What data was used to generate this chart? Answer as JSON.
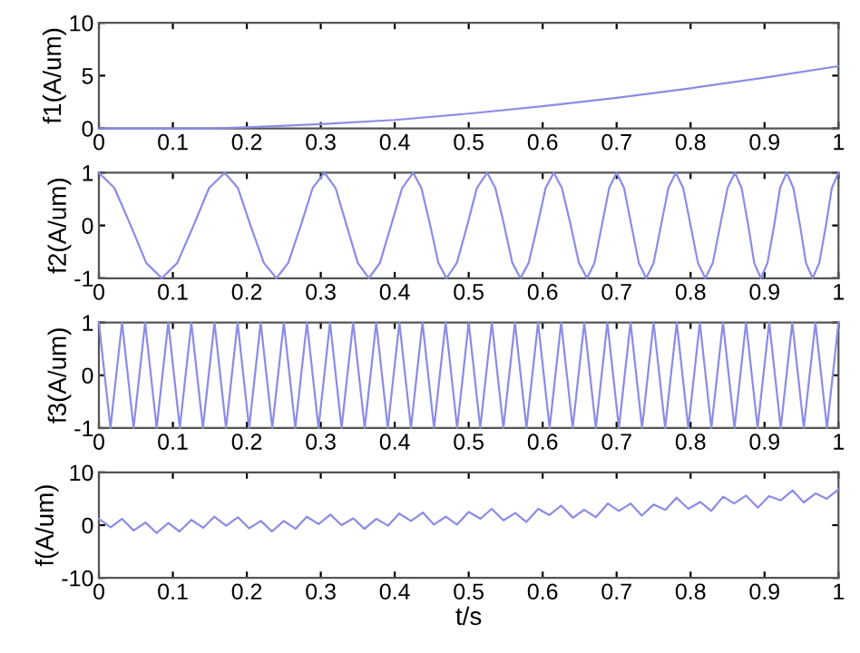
{
  "chart_data": [
    {
      "type": "line",
      "ylabel": "f1(A/um)",
      "x": [
        0,
        0.1,
        0.15,
        0.2,
        0.3,
        0.4,
        0.5,
        0.6,
        0.7,
        0.8,
        0.9,
        1
      ],
      "series": [
        {
          "color": "#8c8ce6",
          "values": [
            0,
            0,
            0,
            0.1,
            0.4,
            0.8,
            1.4,
            2.1,
            2.9,
            3.8,
            4.8,
            5.9
          ]
        }
      ],
      "xlim": [
        0,
        1
      ],
      "ylim": [
        0,
        10
      ],
      "xticks": [
        0,
        0.1,
        0.2,
        0.3,
        0.4,
        0.5,
        0.6,
        0.7,
        0.8,
        0.9,
        1
      ],
      "yticks": [
        0,
        5,
        10
      ],
      "marker": "none",
      "line_style": "solid"
    },
    {
      "type": "line",
      "ylabel": "f2(A/um)",
      "x": [
        0,
        0.021,
        0.043,
        0.064,
        0.085,
        0.106,
        0.128,
        0.149,
        0.17,
        0.188,
        0.205,
        0.223,
        0.24,
        0.256,
        0.273,
        0.289,
        0.305,
        0.32,
        0.335,
        0.35,
        0.365,
        0.38,
        0.395,
        0.41,
        0.425,
        0.436,
        0.448,
        0.459,
        0.47,
        0.484,
        0.498,
        0.511,
        0.525,
        0.536,
        0.548,
        0.559,
        0.57,
        0.581,
        0.593,
        0.604,
        0.615,
        0.626,
        0.638,
        0.649,
        0.66,
        0.67,
        0.68,
        0.69,
        0.7,
        0.71,
        0.72,
        0.73,
        0.74,
        0.75,
        0.76,
        0.77,
        0.78,
        0.79,
        0.8,
        0.81,
        0.82,
        0.83,
        0.84,
        0.85,
        0.86,
        0.869,
        0.878,
        0.886,
        0.895,
        0.904,
        0.913,
        0.921,
        0.93,
        0.939,
        0.948,
        0.956,
        0.965,
        0.974,
        0.983,
        0.991,
        1
      ],
      "series": [
        {
          "color": "#8c8ce6",
          "values": [
            1,
            0.71,
            0,
            -0.71,
            -1,
            -0.71,
            0,
            0.71,
            1,
            0.71,
            0,
            -0.71,
            -1,
            -0.71,
            0,
            0.71,
            1,
            0.71,
            0,
            -0.71,
            -1,
            -0.71,
            0,
            0.71,
            1,
            0.71,
            0,
            -0.71,
            -1,
            -0.71,
            0,
            0.71,
            1,
            0.71,
            0,
            -0.71,
            -1,
            -0.71,
            0,
            0.71,
            1,
            0.71,
            0,
            -0.71,
            -1,
            -0.71,
            0,
            0.71,
            1,
            0.71,
            0,
            -0.71,
            -1,
            -0.71,
            0,
            0.71,
            1,
            0.71,
            0,
            -0.71,
            -1,
            -0.71,
            0,
            0.71,
            1,
            0.71,
            0,
            -0.71,
            -1,
            -0.71,
            0,
            0.71,
            1,
            0.71,
            0,
            -0.71,
            -1,
            -0.71,
            0,
            0.71,
            1
          ]
        }
      ],
      "xlim": [
        0,
        1
      ],
      "ylim": [
        -1,
        1
      ],
      "xticks": [
        0,
        0.1,
        0.2,
        0.3,
        0.4,
        0.5,
        0.6,
        0.7,
        0.8,
        0.9,
        1
      ],
      "yticks": [
        -1,
        0,
        1
      ],
      "marker": "none",
      "line_style": "solid"
    },
    {
      "type": "line",
      "ylabel": "f3(A/um)",
      "x": [
        0,
        0.0078,
        0.0156,
        0.0234,
        0.0313,
        0.0391,
        0.0469,
        0.0547,
        0.0625,
        0.0703,
        0.0781,
        0.0859,
        0.0938,
        0.1016,
        0.1094,
        0.1172,
        0.125,
        0.1328,
        0.1406,
        0.1484,
        0.1563,
        0.1641,
        0.1719,
        0.1797,
        0.1875,
        0.1953,
        0.2031,
        0.2109,
        0.2188,
        0.2266,
        0.2344,
        0.2422,
        0.25,
        0.2578,
        0.2656,
        0.2734,
        0.2813,
        0.2891,
        0.2969,
        0.3047,
        0.3125,
        0.3203,
        0.3281,
        0.3359,
        0.3438,
        0.3516,
        0.3594,
        0.3672,
        0.375,
        0.3828,
        0.3906,
        0.3984,
        0.4063,
        0.4141,
        0.4219,
        0.4297,
        0.4375,
        0.4453,
        0.4531,
        0.4609,
        0.4688,
        0.4766,
        0.4844,
        0.4922,
        0.5,
        0.5078,
        0.5156,
        0.5234,
        0.5313,
        0.5391,
        0.5469,
        0.5547,
        0.5625,
        0.5703,
        0.5781,
        0.5859,
        0.5938,
        0.6016,
        0.6094,
        0.6172,
        0.625,
        0.6328,
        0.6406,
        0.6484,
        0.6563,
        0.6641,
        0.6719,
        0.6797,
        0.6875,
        0.6953,
        0.7031,
        0.7109,
        0.7188,
        0.7266,
        0.7344,
        0.7422,
        0.75,
        0.7578,
        0.7656,
        0.7734,
        0.7813,
        0.7891,
        0.7969,
        0.8047,
        0.8125,
        0.8203,
        0.8281,
        0.8359,
        0.8438,
        0.8516,
        0.8594,
        0.8672,
        0.875,
        0.8828,
        0.8906,
        0.8984,
        0.9063,
        0.9141,
        0.9219,
        0.9297,
        0.9375,
        0.9453,
        0.9531,
        0.9609,
        0.9688,
        0.9766,
        0.9844,
        0.9922,
        1
      ],
      "series": [
        {
          "color": "#8c8ce6",
          "values": [
            1,
            0,
            -1,
            0,
            1,
            0,
            -1,
            0,
            1,
            0,
            -1,
            0,
            1,
            0,
            -1,
            0,
            1,
            0,
            -1,
            0,
            1,
            0,
            -1,
            0,
            1,
            0,
            -1,
            0,
            1,
            0,
            -1,
            0,
            1,
            0,
            -1,
            0,
            1,
            0,
            -1,
            0,
            1,
            0,
            -1,
            0,
            1,
            0,
            -1,
            0,
            1,
            0,
            -1,
            0,
            1,
            0,
            -1,
            0,
            1,
            0,
            -1,
            0,
            1,
            0,
            -1,
            0,
            1,
            0,
            -1,
            0,
            1,
            0,
            -1,
            0,
            1,
            0,
            -1,
            0,
            1,
            0,
            -1,
            0,
            1,
            0,
            -1,
            0,
            1,
            0,
            -1,
            0,
            1,
            0,
            -1,
            0,
            1,
            0,
            -1,
            0,
            1,
            0,
            -1,
            0,
            1,
            0,
            -1,
            0,
            1,
            0,
            -1,
            0,
            1,
            0,
            -1,
            0,
            1,
            0,
            -1,
            0,
            1,
            0,
            -1,
            0,
            1,
            0,
            -1,
            0,
            1,
            0,
            -1,
            0,
            1
          ]
        }
      ],
      "xlim": [
        0,
        1
      ],
      "ylim": [
        -1,
        1
      ],
      "xticks": [
        0,
        0.1,
        0.2,
        0.3,
        0.4,
        0.5,
        0.6,
        0.7,
        0.8,
        0.9,
        1
      ],
      "yticks": [
        -1,
        0,
        1
      ],
      "marker": "none",
      "line_style": "solid"
    },
    {
      "type": "line",
      "ylabel": "f(A/um)",
      "xlabel": "t/s",
      "x": [
        0,
        0.016,
        0.031,
        0.047,
        0.063,
        0.078,
        0.094,
        0.109,
        0.125,
        0.141,
        0.156,
        0.172,
        0.188,
        0.203,
        0.219,
        0.234,
        0.25,
        0.266,
        0.281,
        0.297,
        0.313,
        0.328,
        0.344,
        0.359,
        0.375,
        0.391,
        0.406,
        0.422,
        0.438,
        0.453,
        0.469,
        0.484,
        0.5,
        0.516,
        0.531,
        0.547,
        0.563,
        0.578,
        0.594,
        0.609,
        0.625,
        0.641,
        0.656,
        0.672,
        0.688,
        0.703,
        0.719,
        0.734,
        0.75,
        0.766,
        0.781,
        0.797,
        0.813,
        0.828,
        0.844,
        0.859,
        0.875,
        0.891,
        0.906,
        0.922,
        0.938,
        0.953,
        0.969,
        0.984,
        1
      ],
      "series": [
        {
          "color": "#8c8ce6",
          "values": [
            1.2,
            -0.4,
            1.2,
            -1.0,
            0.5,
            -1.5,
            0.4,
            -1.2,
            1.0,
            -0.5,
            1.6,
            -0.1,
            1.5,
            -0.6,
            0.8,
            -1.2,
            0.8,
            -0.7,
            1.6,
            0.2,
            2.0,
            0.0,
            1.3,
            -0.7,
            1.2,
            -0.1,
            2.2,
            0.8,
            2.4,
            0.1,
            1.6,
            0.1,
            2.5,
            1.2,
            3.1,
            0.9,
            2.3,
            0.6,
            3.1,
            1.9,
            3.7,
            1.4,
            2.9,
            1.5,
            4.1,
            2.7,
            4.1,
            1.8,
            3.9,
            2.9,
            5.2,
            3.1,
            4.4,
            2.7,
            5.4,
            4.1,
            5.6,
            3.3,
            5.5,
            4.7,
            6.6,
            4.3,
            6.0,
            5.0,
            6.8
          ]
        }
      ],
      "xlim": [
        0,
        1
      ],
      "ylim": [
        -10,
        10
      ],
      "xticks": [
        0,
        0.1,
        0.2,
        0.3,
        0.4,
        0.5,
        0.6,
        0.7,
        0.8,
        0.9,
        1
      ],
      "yticks": [
        -10,
        0,
        10
      ],
      "marker": "none",
      "line_style": "solid"
    }
  ]
}
